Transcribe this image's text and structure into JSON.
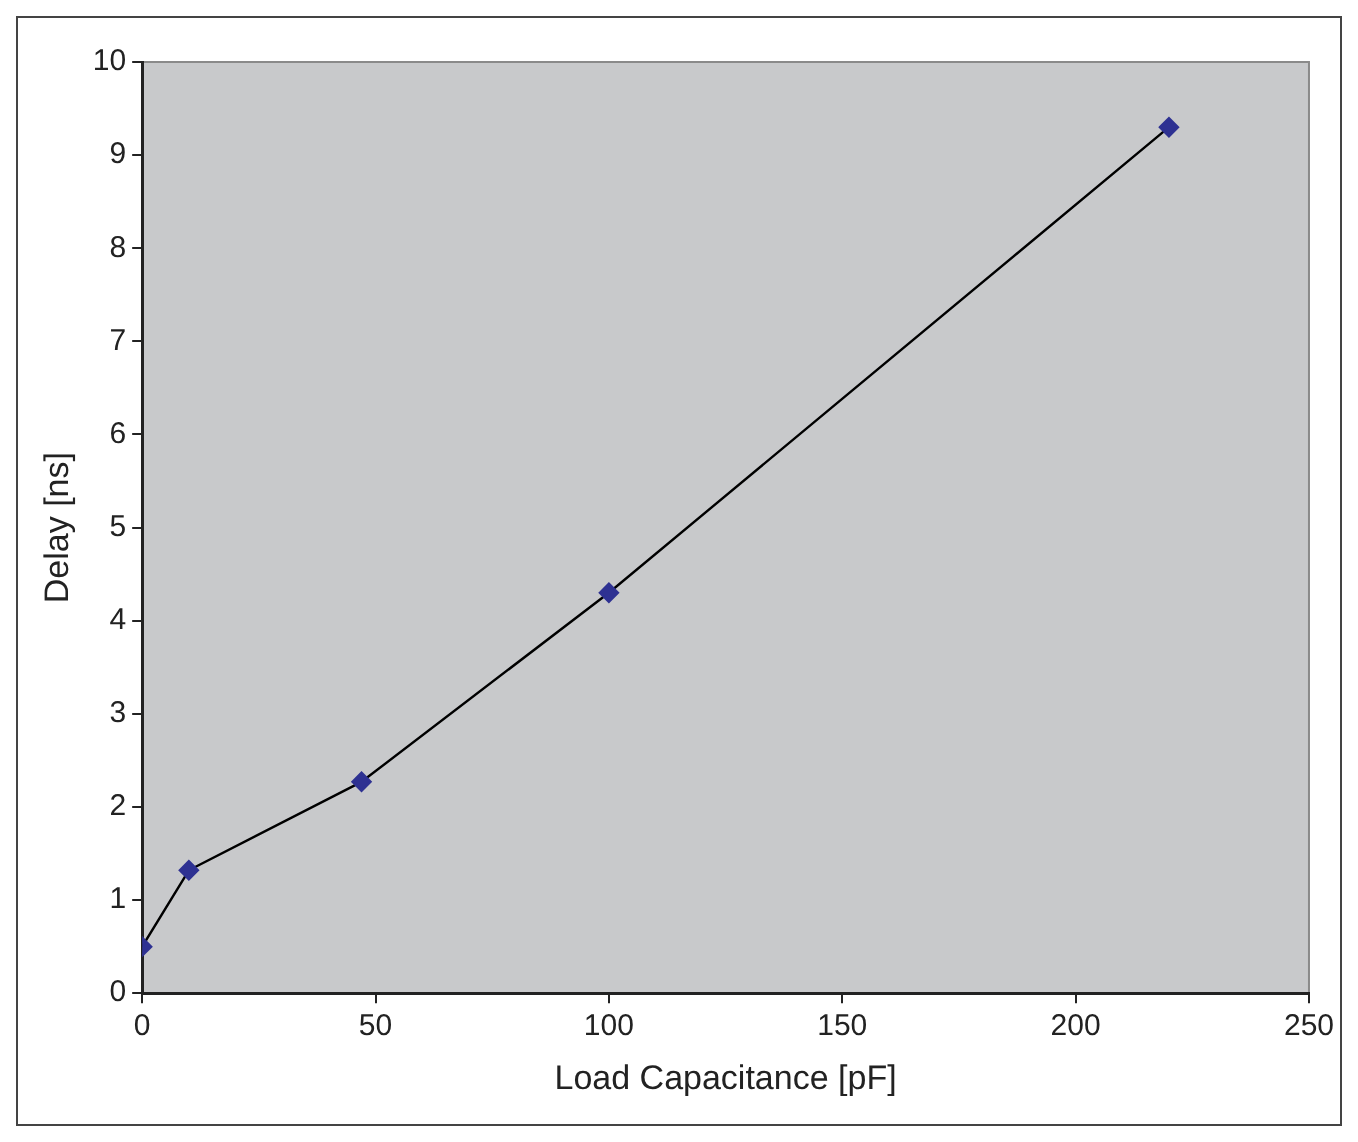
{
  "chart_data": {
    "type": "line",
    "xlabel": "Load Capacitance [pF]",
    "ylabel": "Delay [ns]",
    "x": [
      0,
      10,
      47,
      100,
      220
    ],
    "series": [
      {
        "color": "#2e3192",
        "values": [
          0.5,
          1.32,
          2.27,
          4.3,
          9.3
        ]
      }
    ],
    "xlim": [
      0,
      250
    ],
    "xticks": [
      0,
      50,
      100,
      150,
      200,
      250
    ],
    "ylim": [
      0,
      10
    ],
    "yticks": [
      0,
      1,
      2,
      3,
      4,
      5,
      6,
      7,
      8,
      9,
      10
    ],
    "grid": false,
    "legend": false,
    "marker": "diamond",
    "line_style": "solid"
  }
}
